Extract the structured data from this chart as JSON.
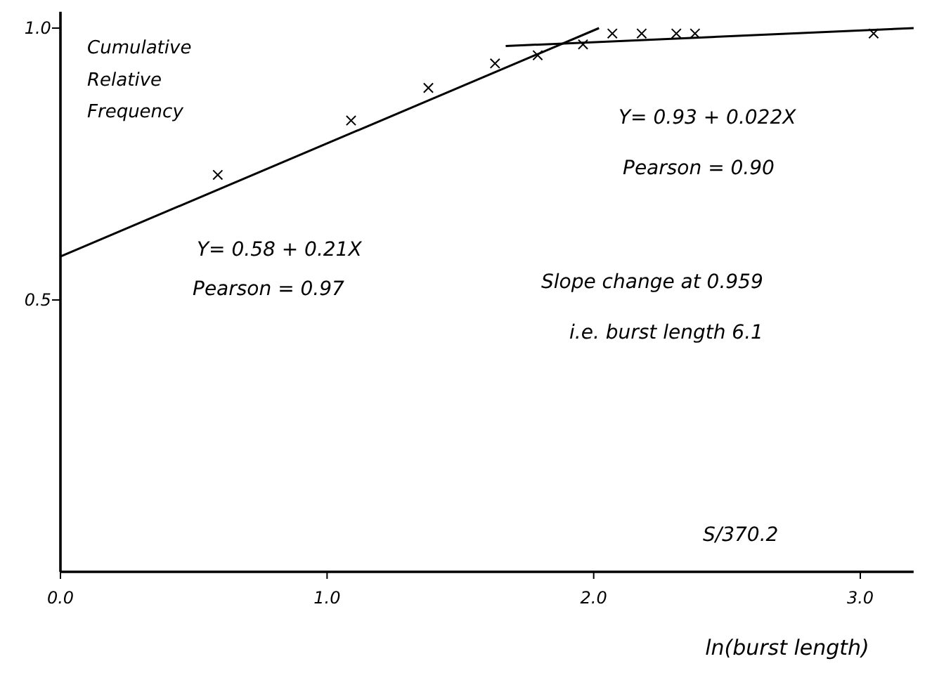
{
  "chart_data": {
    "type": "scatter",
    "xlabel": "ln(burst length)",
    "ylabel": "Cumulative Relative Frequency",
    "xlim": [
      0,
      3.2
    ],
    "ylim": [
      0,
      1.03
    ],
    "xticks": [
      {
        "value": 0,
        "label": "0.0"
      },
      {
        "value": 1,
        "label": "1.0"
      },
      {
        "value": 2,
        "label": "2.0"
      },
      {
        "value": 3,
        "label": "3.0"
      }
    ],
    "yticks": [
      {
        "value": 0.5,
        "label": "0.5"
      },
      {
        "value": 1,
        "label": "1.0"
      }
    ],
    "series": [
      {
        "marker": "cross",
        "color": "#000000",
        "x": [
          0.59,
          1.09,
          1.38,
          1.63,
          1.79,
          1.96,
          2.07,
          2.18,
          2.31,
          2.38,
          3.05
        ],
        "values": [
          0.73,
          0.83,
          0.89,
          0.935,
          0.95,
          0.97,
          0.99,
          0.99,
          0.99,
          0.99,
          0.99
        ]
      },
      {
        "type": "line",
        "color": "#000000",
        "x": [
          0,
          2.02
        ],
        "values": [
          0.58,
          1.0
        ]
      },
      {
        "type": "line",
        "color": "#000000",
        "x": [
          1.67,
          3.2
        ],
        "values": [
          0.967,
          1.0
        ]
      }
    ],
    "annotations": [
      "Y= 0.58 + 0.21X",
      "Pearson = 0.97",
      "Y= 0.93 + 0.022X",
      "Pearson = 0.90",
      "Slope change at 0.959",
      "i.e. burst length 6.1",
      "S/370.2"
    ]
  }
}
